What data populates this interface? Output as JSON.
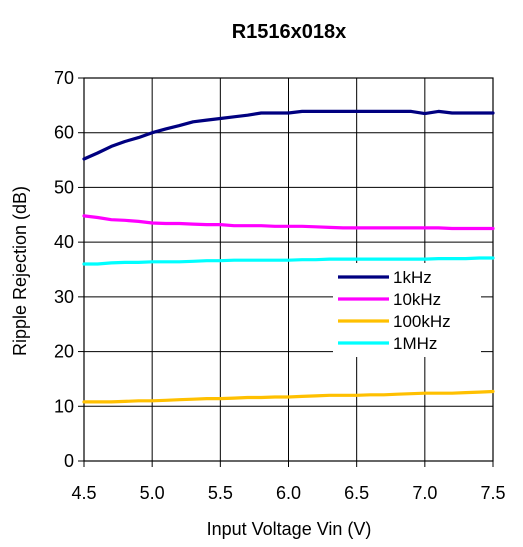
{
  "chart_data": {
    "type": "line",
    "title": "R1516x018x",
    "xlabel": "Input Voltage Vin (V)",
    "ylabel": "Ripple Rejection (dB)",
    "xlim": [
      4.5,
      7.5
    ],
    "ylim": [
      0,
      70
    ],
    "xticks": [
      4.5,
      5.0,
      5.5,
      6.0,
      6.5,
      7.0,
      7.5
    ],
    "xtick_labels": [
      "4.5",
      "5.0",
      "5.5",
      "6.0",
      "6.5",
      "7.0",
      "7.5"
    ],
    "yticks": [
      0,
      10,
      20,
      30,
      40,
      50,
      60,
      70
    ],
    "ytick_labels": [
      "0",
      "10",
      "20",
      "30",
      "40",
      "50",
      "60",
      "70"
    ],
    "grid": true,
    "legend_position": "center-right",
    "x": [
      4.5,
      4.6,
      4.7,
      4.8,
      4.9,
      5.0,
      5.1,
      5.2,
      5.3,
      5.4,
      5.5,
      5.6,
      5.7,
      5.8,
      5.9,
      6.0,
      6.1,
      6.2,
      6.3,
      6.4,
      6.5,
      6.6,
      6.7,
      6.8,
      6.9,
      7.0,
      7.1,
      7.2,
      7.3,
      7.4,
      7.5
    ],
    "series": [
      {
        "name": "1kHz",
        "color": "#000080",
        "values": [
          55.2,
          56.3,
          57.5,
          58.4,
          59.1,
          60.0,
          60.7,
          61.3,
          62.0,
          62.3,
          62.6,
          62.9,
          63.2,
          63.6,
          63.6,
          63.6,
          63.9,
          63.9,
          63.9,
          63.9,
          63.9,
          63.9,
          63.9,
          63.9,
          63.9,
          63.5,
          63.9,
          63.6,
          63.6,
          63.6,
          63.6
        ]
      },
      {
        "name": "10kHz",
        "color": "#ff00ff",
        "values": [
          44.8,
          44.5,
          44.1,
          44.0,
          43.8,
          43.5,
          43.4,
          43.4,
          43.3,
          43.2,
          43.2,
          43.0,
          43.0,
          43.0,
          42.9,
          42.9,
          42.9,
          42.8,
          42.7,
          42.6,
          42.6,
          42.6,
          42.6,
          42.6,
          42.6,
          42.6,
          42.6,
          42.5,
          42.5,
          42.5,
          42.5
        ]
      },
      {
        "name": "100kHz",
        "color": "#ffc000",
        "values": [
          10.8,
          10.8,
          10.8,
          10.9,
          11.0,
          11.0,
          11.1,
          11.2,
          11.3,
          11.4,
          11.4,
          11.5,
          11.6,
          11.6,
          11.7,
          11.7,
          11.8,
          11.9,
          12.0,
          12.0,
          12.0,
          12.1,
          12.1,
          12.2,
          12.3,
          12.4,
          12.4,
          12.4,
          12.5,
          12.6,
          12.7
        ]
      },
      {
        "name": "1MHz",
        "color": "#00ffff",
        "values": [
          36.0,
          36.0,
          36.2,
          36.3,
          36.3,
          36.4,
          36.4,
          36.4,
          36.5,
          36.6,
          36.6,
          36.7,
          36.7,
          36.7,
          36.7,
          36.7,
          36.8,
          36.8,
          36.9,
          36.9,
          36.9,
          36.9,
          36.9,
          36.9,
          36.9,
          36.9,
          37.0,
          37.0,
          37.0,
          37.1,
          37.1
        ]
      }
    ]
  }
}
